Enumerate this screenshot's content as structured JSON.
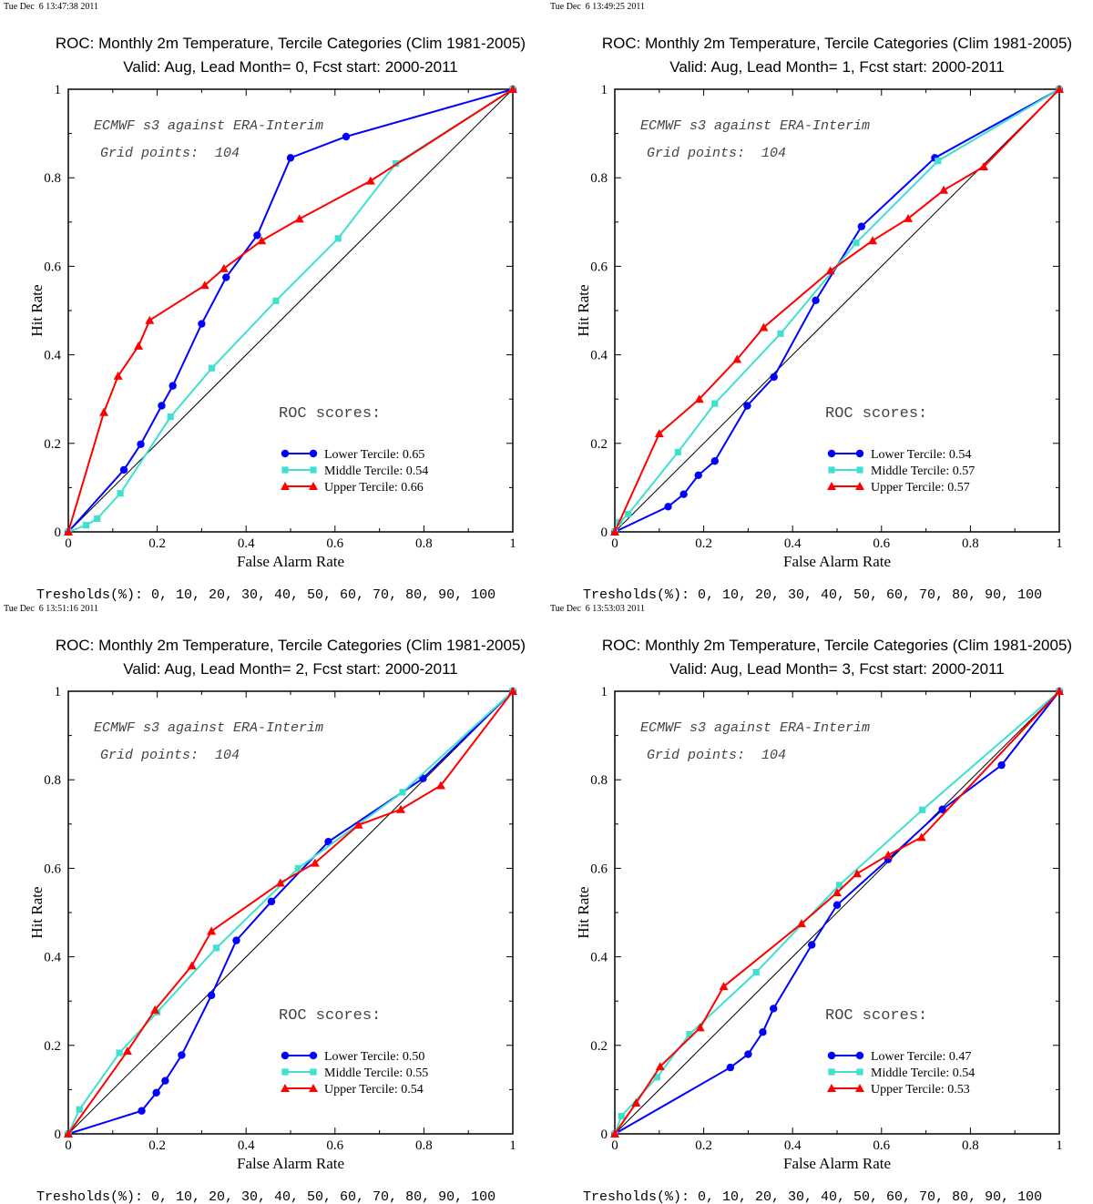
{
  "shared": {
    "title_line1": "ROC: Monthly 2m Temperature, Tercile Categories (Clim 1981-2005)",
    "xlabel": "False Alarm Rate",
    "ylabel": "Hit Rate",
    "annotation_system": "ECMWF s3 against ERA-Interim",
    "annotation_grid": "Grid points:  104",
    "roc_heading": "ROC scores:",
    "thresholds": "Tresholds(%): 0, 10, 20, 30, 40, 50, 60, 70, 80, 90, 100",
    "x_ticks": [
      "0",
      "0.2",
      "0.4",
      "0.6",
      "0.8",
      "1"
    ],
    "y_ticks": [
      "0",
      "0.2",
      "0.4",
      "0.6",
      "0.8",
      "1"
    ],
    "colors": {
      "lower": "#0000ff",
      "middle": "#40e0d0",
      "upper": "#ff0000",
      "diagonal": "#000000"
    }
  },
  "panels": [
    {
      "timestamp": "Tue Dec  6 13:47:38 2011",
      "subtitle": "Valid: Aug, Lead Month= 0, Fcst start: 2000-2011",
      "legend": [
        "Lower Tercile: 0.65",
        "Middle Tercile: 0.54",
        "Upper Tercile: 0.66"
      ]
    },
    {
      "timestamp": "Tue Dec  6 13:49:25 2011",
      "subtitle": "Valid: Aug, Lead Month= 1, Fcst start: 2000-2011",
      "legend": [
        "Lower Tercile: 0.54",
        "Middle Tercile: 0.57",
        "Upper Tercile: 0.57"
      ]
    },
    {
      "timestamp": "Tue Dec  6 13:51:16 2011",
      "subtitle": "Valid: Aug, Lead Month= 2, Fcst start: 2000-2011",
      "legend": [
        "Lower Tercile: 0.50",
        "Middle Tercile: 0.55",
        "Upper Tercile: 0.54"
      ]
    },
    {
      "timestamp": "Tue Dec  6 13:53:03 2011",
      "subtitle": "Valid: Aug, Lead Month= 3, Fcst start: 2000-2011",
      "legend": [
        "Lower Tercile: 0.47",
        "Middle Tercile: 0.54",
        "Upper Tercile: 0.53"
      ]
    }
  ],
  "chart_data": [
    {
      "type": "line",
      "title": "ROC: Monthly 2m Temperature, Tercile Categories (Clim 1981-2005)",
      "subtitle": "Valid: Aug, Lead Month= 0, Fcst start: 2000-2011",
      "xlabel": "False Alarm Rate",
      "ylabel": "Hit Rate",
      "xlim": [
        0,
        1
      ],
      "ylim": [
        0,
        1
      ],
      "series": [
        {
          "name": "Lower Tercile: 0.65",
          "color": "#0000ff",
          "marker": "circle",
          "x": [
            0,
            0.125,
            0.163,
            0.21,
            0.235,
            0.3,
            0.355,
            0.425,
            0.5,
            0.625,
            1
          ],
          "y": [
            0,
            0.14,
            0.198,
            0.285,
            0.33,
            0.47,
            0.575,
            0.67,
            0.845,
            0.893,
            1
          ]
        },
        {
          "name": "Middle Tercile: 0.54",
          "color": "#40e0d0",
          "marker": "square",
          "x": [
            0,
            0.04,
            0.065,
            0.117,
            0.23,
            0.323,
            0.467,
            0.607,
            0.737,
            1
          ],
          "y": [
            0,
            0.015,
            0.03,
            0.087,
            0.26,
            0.37,
            0.522,
            0.663,
            0.832,
            1
          ]
        },
        {
          "name": "Upper Tercile: 0.66",
          "color": "#ff0000",
          "marker": "triangle",
          "x": [
            0,
            0.08,
            0.112,
            0.158,
            0.183,
            0.307,
            0.35,
            0.435,
            0.52,
            0.68,
            1
          ],
          "y": [
            0,
            0.27,
            0.352,
            0.42,
            0.478,
            0.557,
            0.595,
            0.658,
            0.707,
            0.793,
            1
          ]
        }
      ]
    },
    {
      "type": "line",
      "title": "ROC: Monthly 2m Temperature, Tercile Categories (Clim 1981-2005)",
      "subtitle": "Valid: Aug, Lead Month= 1, Fcst start: 2000-2011",
      "xlabel": "False Alarm Rate",
      "ylabel": "Hit Rate",
      "xlim": [
        0,
        1
      ],
      "ylim": [
        0,
        1
      ],
      "series": [
        {
          "name": "Lower Tercile: 0.54",
          "color": "#0000ff",
          "marker": "circle",
          "x": [
            0,
            0.12,
            0.155,
            0.188,
            0.225,
            0.298,
            0.358,
            0.452,
            0.555,
            0.72,
            1
          ],
          "y": [
            0,
            0.057,
            0.085,
            0.128,
            0.16,
            0.285,
            0.35,
            0.523,
            0.69,
            0.845,
            1
          ]
        },
        {
          "name": "Middle Tercile: 0.57",
          "color": "#40e0d0",
          "marker": "square",
          "x": [
            0,
            0.01,
            0.03,
            0.142,
            0.225,
            0.373,
            0.543,
            0.727,
            1
          ],
          "y": [
            0,
            0.022,
            0.04,
            0.18,
            0.29,
            0.448,
            0.653,
            0.838,
            1
          ]
        },
        {
          "name": "Upper Tercile: 0.57",
          "color": "#ff0000",
          "marker": "triangle",
          "x": [
            0,
            0.1,
            0.19,
            0.275,
            0.335,
            0.485,
            0.58,
            0.66,
            0.74,
            0.83,
            1
          ],
          "y": [
            0,
            0.222,
            0.3,
            0.39,
            0.462,
            0.59,
            0.658,
            0.708,
            0.772,
            0.825,
            1
          ]
        }
      ]
    },
    {
      "type": "line",
      "title": "ROC: Monthly 2m Temperature, Tercile Categories (Clim 1981-2005)",
      "subtitle": "Valid: Aug, Lead Month= 2, Fcst start: 2000-2011",
      "xlabel": "False Alarm Rate",
      "ylabel": "Hit Rate",
      "xlim": [
        0,
        1
      ],
      "ylim": [
        0,
        1
      ],
      "series": [
        {
          "name": "Lower Tercile: 0.50",
          "color": "#0000ff",
          "marker": "circle",
          "x": [
            0,
            0.165,
            0.198,
            0.218,
            0.255,
            0.322,
            0.378,
            0.457,
            0.585,
            0.798,
            1
          ],
          "y": [
            0,
            0.052,
            0.093,
            0.12,
            0.178,
            0.313,
            0.437,
            0.525,
            0.66,
            0.803,
            1
          ]
        },
        {
          "name": "Middle Tercile: 0.55",
          "color": "#40e0d0",
          "marker": "square",
          "x": [
            0,
            0.025,
            0.115,
            0.2,
            0.333,
            0.517,
            0.752,
            1
          ],
          "y": [
            0,
            0.055,
            0.183,
            0.275,
            0.42,
            0.6,
            0.772,
            1
          ]
        },
        {
          "name": "Upper Tercile: 0.54",
          "color": "#ff0000",
          "marker": "triangle",
          "x": [
            0,
            0.133,
            0.195,
            0.278,
            0.322,
            0.477,
            0.555,
            0.653,
            0.748,
            0.838,
            1
          ],
          "y": [
            0,
            0.187,
            0.28,
            0.38,
            0.458,
            0.567,
            0.612,
            0.698,
            0.733,
            0.787,
            1
          ]
        }
      ]
    },
    {
      "type": "line",
      "title": "ROC: Monthly 2m Temperature, Tercile Categories (Clim 1981-2005)",
      "subtitle": "Valid: Aug, Lead Month= 3, Fcst start: 2000-2011",
      "xlabel": "False Alarm Rate",
      "ylabel": "Hit Rate",
      "xlim": [
        0,
        1
      ],
      "ylim": [
        0,
        1
      ],
      "series": [
        {
          "name": "Lower Tercile: 0.47",
          "color": "#0000ff",
          "marker": "circle",
          "x": [
            0,
            0.26,
            0.3,
            0.333,
            0.357,
            0.443,
            0.5,
            0.615,
            0.737,
            0.87,
            1
          ],
          "y": [
            0,
            0.15,
            0.18,
            0.23,
            0.283,
            0.427,
            0.517,
            0.62,
            0.733,
            0.833,
            1
          ]
        },
        {
          "name": "Middle Tercile: 0.54",
          "color": "#40e0d0",
          "marker": "square",
          "x": [
            0,
            0.015,
            0.095,
            0.168,
            0.318,
            0.505,
            0.692,
            1
          ],
          "y": [
            0,
            0.04,
            0.128,
            0.225,
            0.365,
            0.562,
            0.732,
            1
          ]
        },
        {
          "name": "Upper Tercile: 0.53",
          "color": "#ff0000",
          "marker": "triangle",
          "x": [
            0,
            0.048,
            0.102,
            0.192,
            0.245,
            0.42,
            0.5,
            0.545,
            0.615,
            0.69,
            1
          ],
          "y": [
            0,
            0.07,
            0.152,
            0.24,
            0.333,
            0.475,
            0.545,
            0.588,
            0.63,
            0.67,
            1
          ]
        }
      ]
    }
  ]
}
